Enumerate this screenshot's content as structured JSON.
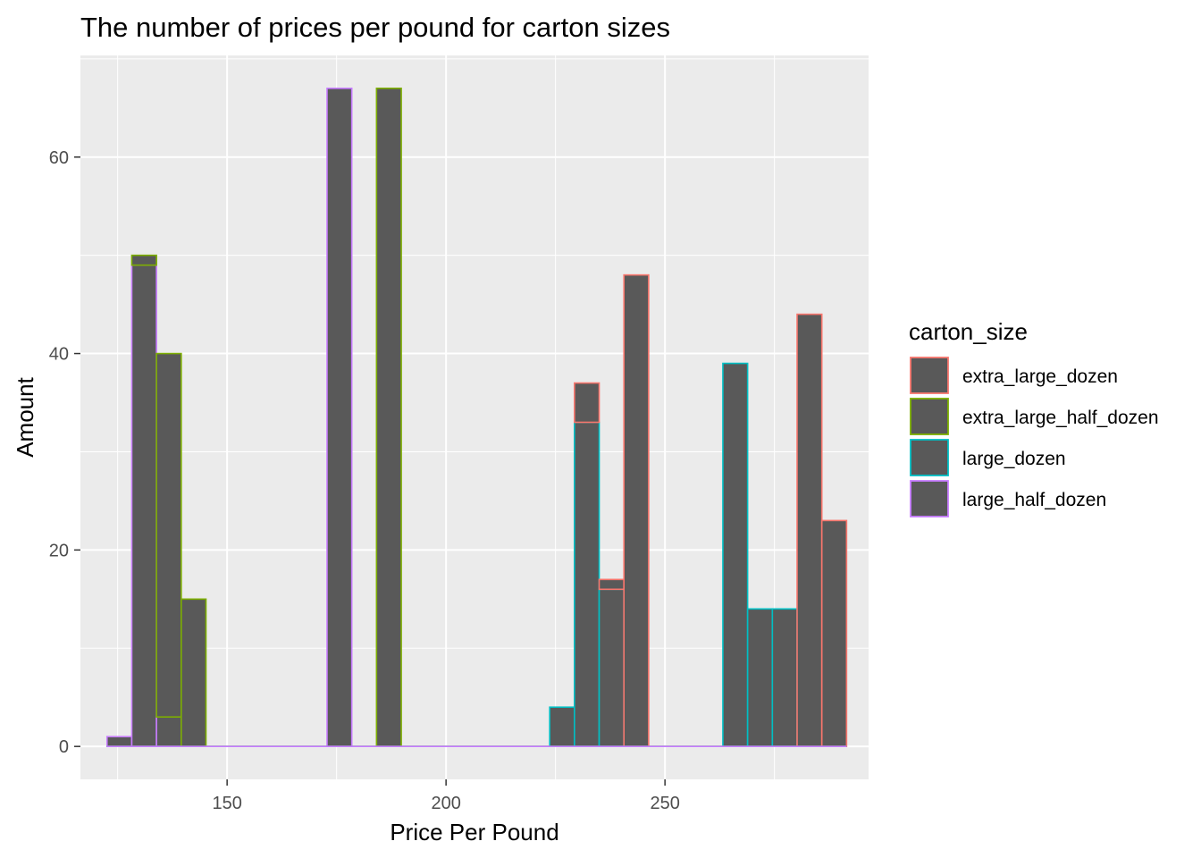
{
  "chart_data": {
    "type": "bar",
    "subtype": "histogram",
    "title": "The number of prices per pound for carton sizes",
    "xlabel": "Price Per Pound",
    "ylabel": "Amount",
    "xlim": [
      116.5,
      296.5
    ],
    "ylim": [
      -3.35,
      70.35
    ],
    "xticks": [
      150,
      200,
      250
    ],
    "yticks": [
      0,
      20,
      40,
      60
    ],
    "grid": true,
    "bin_width": 5.65,
    "legend": {
      "title": "carton_size",
      "position": "right",
      "entries": [
        {
          "label": "extra_large_dozen",
          "color": "#F8766D"
        },
        {
          "label": "extra_large_half_dozen",
          "color": "#7CAE00"
        },
        {
          "label": "large_dozen",
          "color": "#00BFC4"
        },
        {
          "label": "large_half_dozen",
          "color": "#C77CFF"
        }
      ]
    },
    "fill_color": "#595959",
    "bins": [
      {
        "x": 125.4,
        "stack": [
          0,
          0,
          0,
          1
        ]
      },
      {
        "x": 131.05,
        "stack": [
          0,
          1,
          0,
          49
        ]
      },
      {
        "x": 136.7,
        "stack": [
          0,
          37,
          0,
          3
        ]
      },
      {
        "x": 142.35,
        "stack": [
          0,
          15,
          0,
          0
        ]
      },
      {
        "x": 175.65,
        "stack": [
          0,
          0,
          0,
          67
        ]
      },
      {
        "x": 186.95,
        "stack": [
          0,
          67,
          0,
          0
        ]
      },
      {
        "x": 226.5,
        "stack": [
          0,
          0,
          4,
          0
        ]
      },
      {
        "x": 232.15,
        "stack": [
          4,
          0,
          33,
          0
        ]
      },
      {
        "x": 237.8,
        "stack": [
          1,
          0,
          16,
          0
        ]
      },
      {
        "x": 243.45,
        "stack": [
          48,
          0,
          0,
          0
        ]
      },
      {
        "x": 266.05,
        "stack": [
          0,
          0,
          39,
          0
        ]
      },
      {
        "x": 271.7,
        "stack": [
          0,
          0,
          14,
          0
        ]
      },
      {
        "x": 277.35,
        "stack": [
          0,
          0,
          14,
          0
        ]
      },
      {
        "x": 283.0,
        "stack": [
          44,
          0,
          0,
          0
        ]
      },
      {
        "x": 288.65,
        "stack": [
          23,
          0,
          0,
          0
        ]
      }
    ],
    "zero_baseline_range": [
      122.57,
      291.48
    ]
  }
}
